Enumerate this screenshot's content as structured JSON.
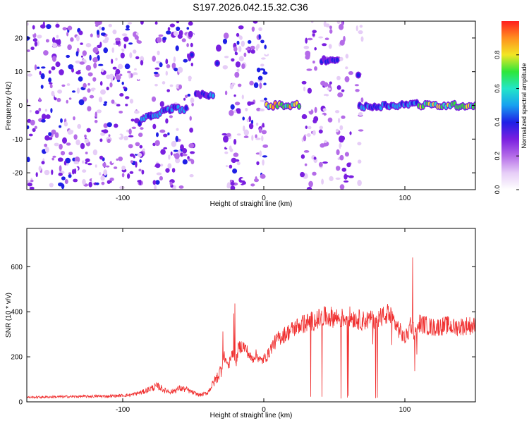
{
  "title": "S197.2026.042.15.32.C36",
  "chart_data": [
    {
      "type": "heatmap",
      "xlabel": "Height of straight line (km)",
      "ylabel": "Frequency (Hz)",
      "xlim": [
        -168,
        150
      ],
      "ylim": [
        -25,
        25
      ],
      "xticks": [
        -100,
        0,
        100
      ],
      "yticks": [
        -20,
        -10,
        0,
        10,
        20
      ],
      "grid": false,
      "colorbar": {
        "label": "Normalized spectral amplitude",
        "range": [
          0.0,
          1.0
        ],
        "ticks": [
          0.0,
          0.2,
          0.4,
          0.6,
          0.8
        ],
        "colormap": [
          "#ffffff",
          "#e6cdf7",
          "#b46be8",
          "#7a1fe0",
          "#1f1fe6",
          "#18a0f0",
          "#22e6c8",
          "#2ee63a",
          "#f2e624",
          "#ff8f1f",
          "#ff1f1f"
        ]
      },
      "features": [
        {
          "kind": "noise-scatter",
          "x_range": [
            -168,
            -85
          ],
          "intensity": 0.3
        },
        {
          "kind": "noise-scatter",
          "x_range": [
            -78,
            -50
          ],
          "intensity": 0.28
        },
        {
          "kind": "noise-scatter",
          "x_range": [
            -28,
            2
          ],
          "intensity": 0.3
        },
        {
          "kind": "noise-scatter",
          "x_range": [
            27,
            37
          ],
          "intensity": 0.25
        },
        {
          "kind": "noise-scatter",
          "x_range": [
            40,
            48
          ],
          "intensity": 0.22
        },
        {
          "kind": "noise-scatter",
          "x_range": [
            52,
            62
          ],
          "intensity": 0.25
        },
        {
          "kind": "noise-scatter",
          "x_range": [
            65,
            70
          ],
          "intensity": 0.2
        },
        {
          "kind": "line",
          "x": [
            -88,
            -80,
            -72,
            -65,
            -55
          ],
          "y": [
            -5,
            -3,
            -2,
            -1,
            -1
          ],
          "amplitude": 0.6
        },
        {
          "kind": "line",
          "x": [
            -48,
            -36
          ],
          "y": [
            3,
            3
          ],
          "amplitude": 0.55
        },
        {
          "kind": "line",
          "x": [
            2,
            25
          ],
          "y": [
            0,
            0
          ],
          "amplitude": 0.95
        },
        {
          "kind": "line",
          "x": [
            41,
            52
          ],
          "y": [
            13.5,
            13.5
          ],
          "amplitude": 0.5
        },
        {
          "kind": "line",
          "x": [
            68,
            110
          ],
          "y": [
            -0.5,
            0.5
          ],
          "amplitude": 0.6
        },
        {
          "kind": "line",
          "x": [
            110,
            150
          ],
          "y": [
            0,
            0
          ],
          "amplitude": 0.9
        },
        {
          "kind": "blob",
          "x": -51,
          "y": 15,
          "amplitude": 0.45
        },
        {
          "kind": "blob",
          "x": -32,
          "y": 17,
          "amplitude": 0.35
        },
        {
          "kind": "blob",
          "x": -33,
          "y": 12.5,
          "amplitude": 0.4
        },
        {
          "kind": "blob",
          "x": -27,
          "y": -10,
          "amplitude": 0.3
        },
        {
          "kind": "blob",
          "x": 55,
          "y": -10,
          "amplitude": 0.3
        },
        {
          "kind": "blob",
          "x": 67,
          "y": 9,
          "amplitude": 0.4
        }
      ]
    },
    {
      "type": "line",
      "xlabel": "Height of straight line (km)",
      "ylabel": "SNR (10 * v/v)",
      "xlim": [
        -168,
        150
      ],
      "ylim": [
        0,
        770
      ],
      "xticks": [
        -100,
        0,
        100
      ],
      "yticks": [
        0,
        200,
        400,
        600
      ],
      "grid": false,
      "color": "#f03030",
      "series": [
        {
          "name": "",
          "x": [
            -168,
            -150,
            -130,
            -110,
            -95,
            -85,
            -80,
            -75,
            -70,
            -65,
            -60,
            -55,
            -50,
            -45,
            -40,
            -38,
            -35,
            -32,
            -30,
            -28,
            -25,
            -22,
            -20,
            -18,
            -15,
            -12,
            -10,
            -8,
            -6,
            -4,
            -2,
            0,
            3,
            6,
            10,
            15,
            20,
            25,
            30,
            35,
            40,
            45,
            50,
            55,
            60,
            65,
            70,
            75,
            80,
            85,
            88,
            92,
            96,
            98,
            100,
            102,
            104,
            106,
            108,
            110,
            115,
            120,
            125,
            130,
            135,
            140,
            145,
            150
          ],
          "y": [
            20,
            22,
            24,
            25,
            30,
            45,
            60,
            70,
            50,
            45,
            60,
            55,
            40,
            30,
            40,
            60,
            90,
            120,
            150,
            200,
            160,
            220,
            160,
            240,
            250,
            230,
            200,
            190,
            210,
            200,
            180,
            190,
            210,
            250,
            280,
            300,
            320,
            340,
            350,
            360,
            370,
            380,
            375,
            370,
            380,
            370,
            360,
            365,
            370,
            380,
            390,
            360,
            320,
            300,
            280,
            300,
            350,
            320,
            300,
            350,
            340,
            330,
            335,
            340,
            330,
            335,
            340,
            335
          ]
        }
      ]
    }
  ]
}
